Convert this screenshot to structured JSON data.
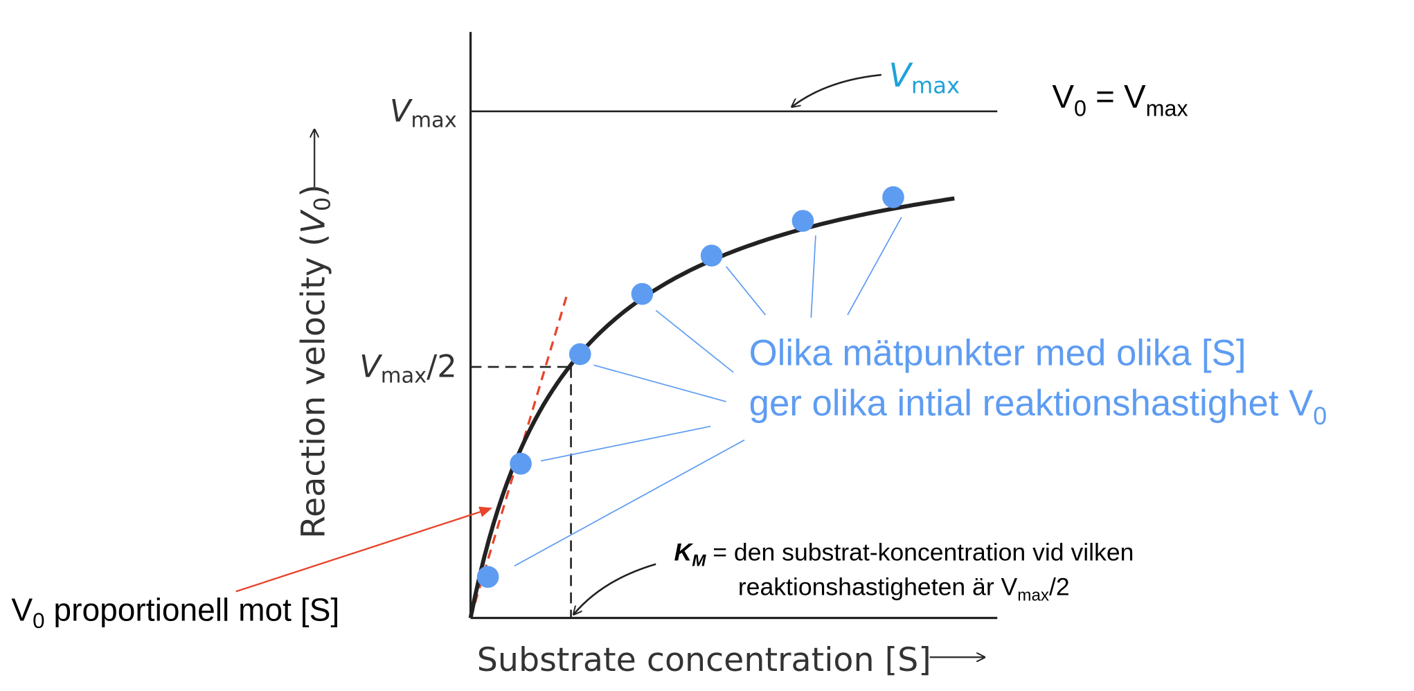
{
  "axes": {
    "y_label": {
      "text": "Reaction velocity (",
      "var": "V",
      "sub": "0",
      "end": ")"
    },
    "x_label": "Substrate concentration [S]"
  },
  "ticks": {
    "vmax": {
      "var": "V",
      "sub": "max"
    },
    "half": {
      "var": "V",
      "sub": "max",
      "end": "/2"
    }
  },
  "vmax_annotation": {
    "var": "V",
    "sub": "max"
  },
  "equation": {
    "left": "V",
    "left_sub": "0",
    "eq": " = V",
    "right_sub": "max"
  },
  "points_note": {
    "line1": "Olika mätpunkter med olika [S]",
    "line2": "ger olika intial reaktionshastighet V",
    "line2_sub": "0"
  },
  "km_note": {
    "symbol": "K",
    "symbol_sub": "M",
    "line1": " = den substrat-koncentration vid vilken",
    "line2": "reaktionshastigheten är V",
    "line2_sub": "max",
    "line2_end": "/2"
  },
  "proportional_note": {
    "var": "V",
    "sub": "0",
    "text": " proportionell mot [S]"
  }
}
